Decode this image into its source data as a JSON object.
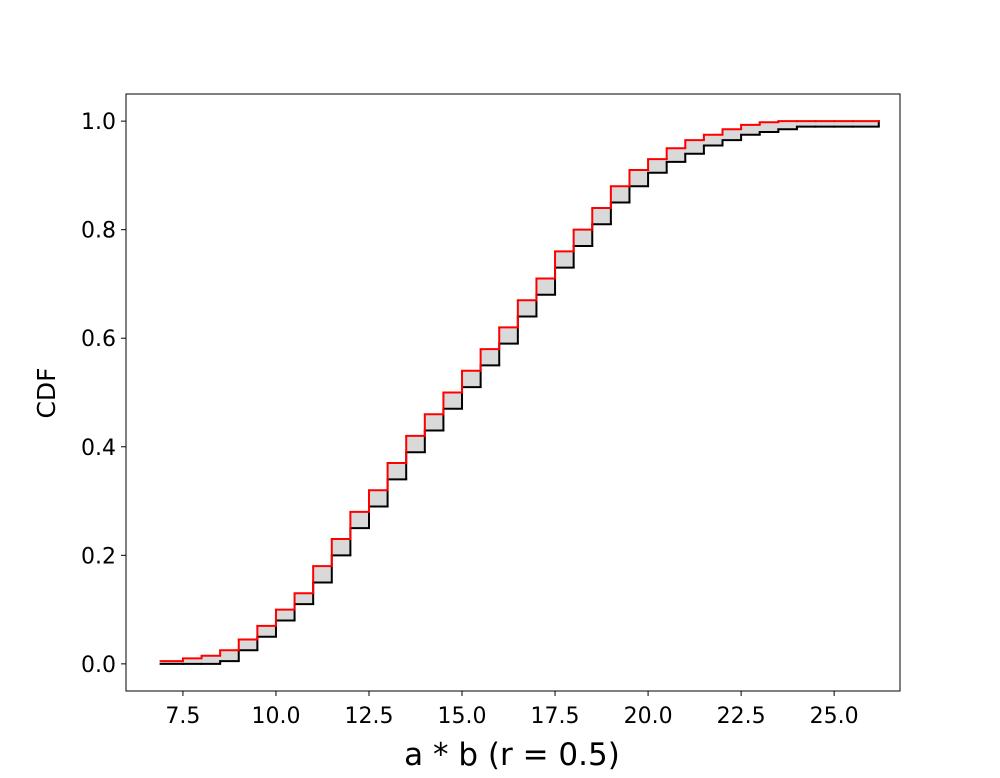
{
  "chart_data": {
    "type": "step",
    "xlabel": "a * b (r = 0.5)",
    "ylabel": "CDF",
    "x": [
      6.9,
      7.5,
      8,
      8.5,
      9,
      9.5,
      10,
      10.5,
      11,
      11.5,
      12,
      12.5,
      13,
      13.5,
      14,
      14.5,
      15,
      15.5,
      16,
      16.5,
      17,
      17.5,
      18,
      18.5,
      19,
      19.5,
      20,
      20.5,
      21,
      21.5,
      22,
      22.5,
      23,
      23.5,
      24,
      24.5,
      25,
      25.5,
      26.2
    ],
    "series": [
      {
        "color": "#ff0000",
        "values": [
          0.005,
          0.01,
          0.015,
          0.025,
          0.045,
          0.07,
          0.1,
          0.13,
          0.18,
          0.23,
          0.28,
          0.32,
          0.37,
          0.42,
          0.46,
          0.5,
          0.54,
          0.58,
          0.62,
          0.67,
          0.71,
          0.76,
          0.8,
          0.84,
          0.88,
          0.91,
          0.93,
          0.95,
          0.965,
          0.975,
          0.985,
          0.993,
          0.998,
          1,
          1,
          1,
          1,
          1,
          1
        ]
      },
      {
        "color": "#000000",
        "values": [
          0,
          0,
          0,
          0.005,
          0.025,
          0.05,
          0.08,
          0.11,
          0.15,
          0.2,
          0.25,
          0.29,
          0.34,
          0.39,
          0.43,
          0.47,
          0.51,
          0.55,
          0.59,
          0.64,
          0.68,
          0.73,
          0.77,
          0.81,
          0.85,
          0.88,
          0.905,
          0.925,
          0.94,
          0.955,
          0.965,
          0.975,
          0.98,
          0.985,
          0.99,
          0.99,
          0.99,
          0.99,
          1
        ]
      }
    ],
    "fill_color": "#d9d9d9",
    "xlim": [
      5.97,
      26.77
    ],
    "ylim": [
      -0.05,
      1.05
    ],
    "xticks": [
      {
        "value": 7.5,
        "label": "7.5"
      },
      {
        "value": 10,
        "label": "10.0"
      },
      {
        "value": 12.5,
        "label": "12.5"
      },
      {
        "value": 15,
        "label": "15.0"
      },
      {
        "value": 17.5,
        "label": "17.5"
      },
      {
        "value": 20,
        "label": "20.0"
      },
      {
        "value": 22.5,
        "label": "22.5"
      },
      {
        "value": 25,
        "label": "25.0"
      }
    ],
    "yticks": [
      {
        "value": 0,
        "label": "0.0"
      },
      {
        "value": 0.2,
        "label": "0.2"
      },
      {
        "value": 0.4,
        "label": "0.4"
      },
      {
        "value": 0.6,
        "label": "0.6"
      },
      {
        "value": 0.8,
        "label": "0.8"
      },
      {
        "value": 1,
        "label": "1.0"
      }
    ]
  }
}
